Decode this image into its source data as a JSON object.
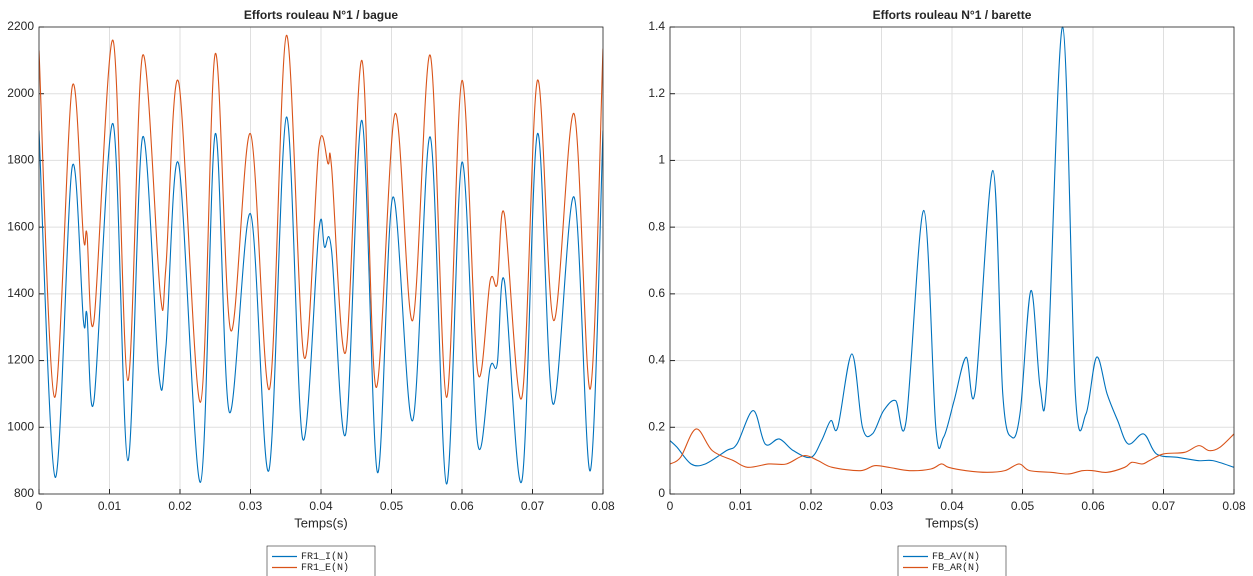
{
  "chart_data": [
    {
      "type": "line",
      "title": "Efforts rouleau N°1 / bague",
      "x_label": "Temps(s)",
      "xlim": [
        0,
        0.08
      ],
      "xticks": [
        0,
        0.01,
        0.02,
        0.03,
        0.04,
        0.05,
        0.06,
        0.07,
        0.08
      ],
      "ylim": [
        800,
        2200
      ],
      "yticks": [
        800,
        1000,
        1200,
        1400,
        1600,
        1800,
        2000,
        2200
      ],
      "grid": true,
      "legend": "below",
      "series": [
        {
          "name": "FR1_I(N)",
          "color": "#0072bd",
          "x": [
            0,
            0.0023,
            0.0047,
            0.0063,
            0.0068,
            0.0078,
            0.0105,
            0.0126,
            0.0147,
            0.017,
            0.018,
            0.0198,
            0.0229,
            0.025,
            0.027,
            0.03,
            0.0326,
            0.0351,
            0.0374,
            0.0397,
            0.0405,
            0.0415,
            0.0435,
            0.0458,
            0.048,
            0.0502,
            0.053,
            0.0555,
            0.0578,
            0.06,
            0.0622,
            0.064,
            0.065,
            0.066,
            0.0685,
            0.0707,
            0.0729,
            0.0759,
            0.0782,
            0.08
          ],
          "values": [
            1890,
            850,
            1780,
            1320,
            1340,
            1080,
            1910,
            900,
            1870,
            1160,
            1240,
            1790,
            835,
            1880,
            1045,
            1640,
            870,
            1930,
            965,
            1590,
            1540,
            1530,
            980,
            1920,
            865,
            1690,
            1020,
            1870,
            830,
            1795,
            955,
            1180,
            1190,
            1440,
            840,
            1880,
            1070,
            1690,
            870,
            1890
          ]
        },
        {
          "name": "FR1_E(N)",
          "color": "#d95319",
          "x": [
            0,
            0.0022,
            0.0047,
            0.0063,
            0.0068,
            0.0078,
            0.0105,
            0.0126,
            0.0147,
            0.0172,
            0.018,
            0.0198,
            0.0229,
            0.025,
            0.0272,
            0.03,
            0.0327,
            0.0351,
            0.0376,
            0.0397,
            0.041,
            0.0415,
            0.0435,
            0.0458,
            0.0478,
            0.0505,
            0.053,
            0.0555,
            0.0578,
            0.06,
            0.0622,
            0.064,
            0.065,
            0.066,
            0.0685,
            0.0707,
            0.073,
            0.0759,
            0.0782,
            0.08
          ],
          "values": [
            2130,
            1090,
            2020,
            1570,
            1580,
            1320,
            2160,
            1140,
            2115,
            1400,
            1480,
            2035,
            1075,
            2120,
            1290,
            1880,
            1115,
            2175,
            1210,
            1840,
            1790,
            1780,
            1225,
            2100,
            1120,
            1940,
            1320,
            2115,
            1090,
            2040,
            1170,
            1440,
            1430,
            1640,
            1090,
            2040,
            1320,
            1940,
            1115,
            2135
          ]
        }
      ]
    },
    {
      "type": "line",
      "title": "Efforts rouleau N°1 / barette",
      "x_label": "Temps(s)",
      "xlim": [
        0,
        0.08
      ],
      "xticks": [
        0,
        0.01,
        0.02,
        0.03,
        0.04,
        0.05,
        0.06,
        0.07,
        0.08
      ],
      "ylim": [
        0,
        1.4
      ],
      "yticks": [
        0,
        0.2,
        0.4,
        0.6,
        0.8,
        1,
        1.2,
        1.4
      ],
      "grid": true,
      "legend": "below",
      "series": [
        {
          "name": "FB_AV(N)",
          "color": "#0072bd",
          "x": [
            0,
            0.001,
            0.003,
            0.005,
            0.008,
            0.0095,
            0.0118,
            0.0135,
            0.0155,
            0.0175,
            0.02,
            0.0215,
            0.0228,
            0.0238,
            0.0258,
            0.0273,
            0.0287,
            0.0303,
            0.032,
            0.0335,
            0.036,
            0.0377,
            0.0388,
            0.0403,
            0.042,
            0.0433,
            0.0458,
            0.0472,
            0.0485,
            0.0497,
            0.0512,
            0.0525,
            0.0535,
            0.0557,
            0.0575,
            0.059,
            0.0605,
            0.062,
            0.0635,
            0.065,
            0.0672,
            0.069,
            0.072,
            0.075,
            0.077,
            0.08
          ],
          "values": [
            0.16,
            0.14,
            0.09,
            0.09,
            0.13,
            0.15,
            0.25,
            0.15,
            0.165,
            0.13,
            0.11,
            0.16,
            0.22,
            0.2,
            0.42,
            0.2,
            0.18,
            0.25,
            0.28,
            0.22,
            0.85,
            0.2,
            0.17,
            0.28,
            0.41,
            0.31,
            0.97,
            0.3,
            0.17,
            0.25,
            0.61,
            0.32,
            0.35,
            1.4,
            0.3,
            0.24,
            0.41,
            0.3,
            0.22,
            0.15,
            0.18,
            0.12,
            0.11,
            0.1,
            0.1,
            0.08
          ]
        },
        {
          "name": "FB_AR(N)",
          "color": "#d95319",
          "x": [
            0,
            0.0015,
            0.0037,
            0.006,
            0.009,
            0.011,
            0.014,
            0.0165,
            0.019,
            0.021,
            0.023,
            0.027,
            0.029,
            0.031,
            0.034,
            0.037,
            0.0385,
            0.0395,
            0.042,
            0.045,
            0.0475,
            0.0495,
            0.051,
            0.054,
            0.0565,
            0.0585,
            0.06,
            0.062,
            0.0645,
            0.0655,
            0.067,
            0.068,
            0.07,
            0.073,
            0.075,
            0.0765,
            0.078,
            0.08
          ],
          "values": [
            0.09,
            0.11,
            0.195,
            0.13,
            0.1,
            0.08,
            0.09,
            0.09,
            0.115,
            0.1,
            0.08,
            0.07,
            0.085,
            0.08,
            0.07,
            0.075,
            0.09,
            0.08,
            0.07,
            0.065,
            0.07,
            0.09,
            0.07,
            0.065,
            0.06,
            0.07,
            0.07,
            0.065,
            0.08,
            0.095,
            0.09,
            0.1,
            0.12,
            0.125,
            0.145,
            0.13,
            0.14,
            0.18
          ]
        }
      ]
    }
  ]
}
